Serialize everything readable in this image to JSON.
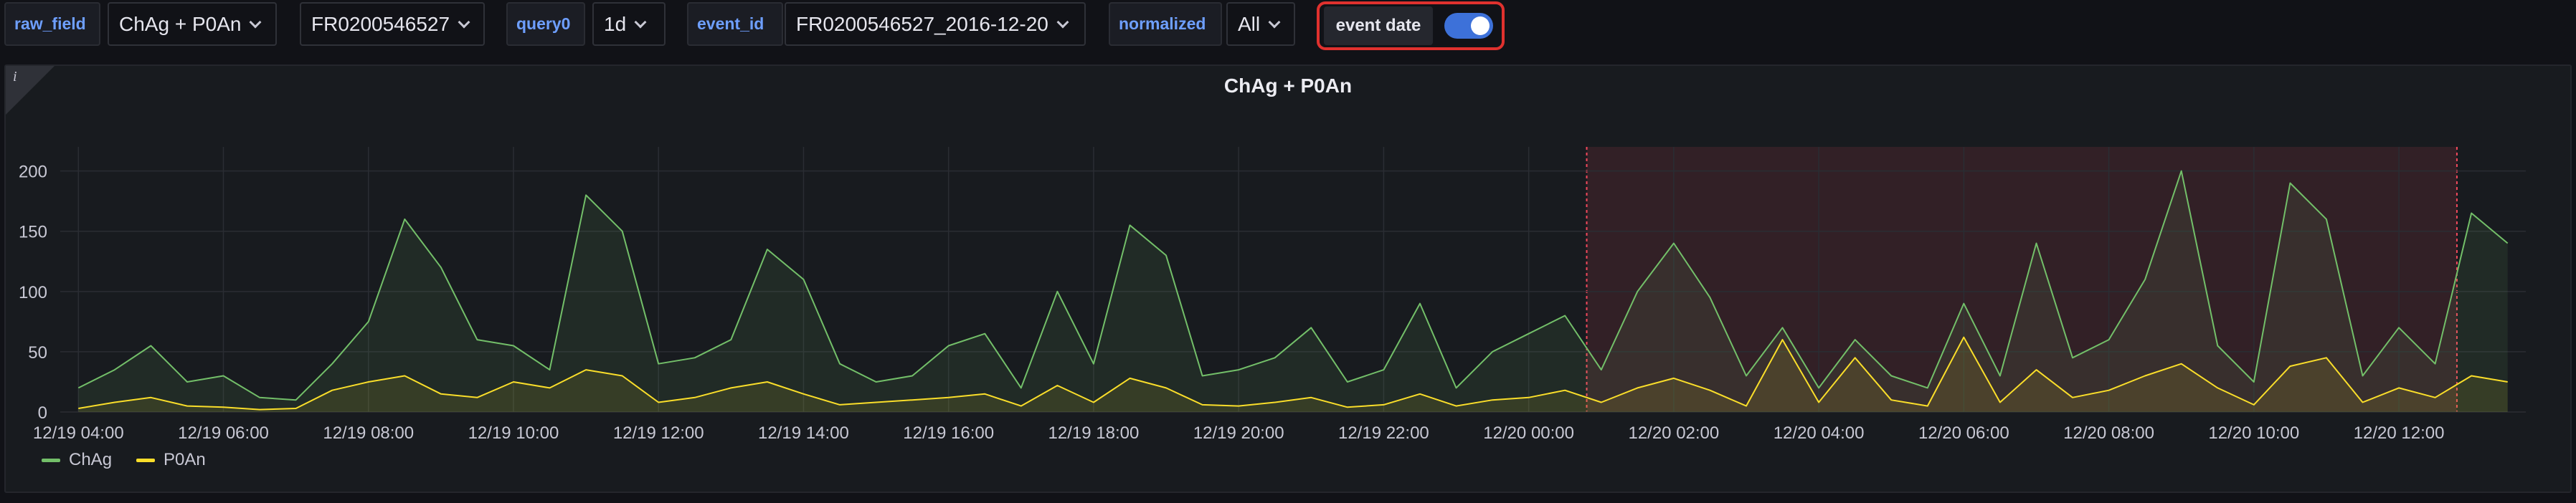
{
  "toolbar": {
    "raw_field_label": "raw_field",
    "raw_field_value": "ChAg + P0An",
    "station_value": "FR0200546527",
    "query0_label": "query0",
    "query0_value": "1d",
    "event_id_label": "event_id",
    "event_id_value": "FR0200546527_2016-12-20",
    "normalized_label": "normalized",
    "normalized_value": "All",
    "event_date_label": "event date",
    "event_date_on": true
  },
  "panel": {
    "info_icon": "i"
  },
  "colors": {
    "ChAg": "#73bf69",
    "P0An": "#fade2a",
    "event_region": "#f2495c",
    "toggle": "#3d71d9",
    "highlight": "#e0312e"
  },
  "chart_data": {
    "type": "line",
    "title": "ChAg + P0An",
    "xlabel": "",
    "ylabel": "",
    "ylim": [
      0,
      220
    ],
    "yticks": [
      0,
      50,
      100,
      150,
      200
    ],
    "xlim": [
      "12/19 03:45",
      "12/20 13:45"
    ],
    "xticks": [
      "12/19 04:00",
      "12/19 06:00",
      "12/19 08:00",
      "12/19 10:00",
      "12/19 12:00",
      "12/19 14:00",
      "12/19 16:00",
      "12/19 18:00",
      "12/19 20:00",
      "12/19 22:00",
      "12/20 00:00",
      "12/20 02:00",
      "12/20 04:00",
      "12/20 06:00",
      "12/20 08:00",
      "12/20 10:00",
      "12/20 12:00"
    ],
    "grid": true,
    "legend": "bottom-left",
    "event_region": {
      "start": "12/20 00:48",
      "end": "12/20 12:48"
    },
    "x": [
      "12/19 04:00",
      "12/19 04:30",
      "12/19 05:00",
      "12/19 05:30",
      "12/19 06:00",
      "12/19 06:30",
      "12/19 07:00",
      "12/19 07:30",
      "12/19 08:00",
      "12/19 08:30",
      "12/19 09:00",
      "12/19 09:30",
      "12/19 10:00",
      "12/19 10:30",
      "12/19 11:00",
      "12/19 11:30",
      "12/19 12:00",
      "12/19 12:30",
      "12/19 13:00",
      "12/19 13:30",
      "12/19 14:00",
      "12/19 14:30",
      "12/19 15:00",
      "12/19 15:30",
      "12/19 16:00",
      "12/19 16:30",
      "12/19 17:00",
      "12/19 17:30",
      "12/19 18:00",
      "12/19 18:30",
      "12/19 19:00",
      "12/19 19:30",
      "12/19 20:00",
      "12/19 20:30",
      "12/19 21:00",
      "12/19 21:30",
      "12/19 22:00",
      "12/19 22:30",
      "12/19 23:00",
      "12/19 23:30",
      "12/20 00:00",
      "12/20 00:30",
      "12/20 01:00",
      "12/20 01:30",
      "12/20 02:00",
      "12/20 02:30",
      "12/20 03:00",
      "12/20 03:30",
      "12/20 04:00",
      "12/20 04:30",
      "12/20 05:00",
      "12/20 05:30",
      "12/20 06:00",
      "12/20 06:30",
      "12/20 07:00",
      "12/20 07:30",
      "12/20 08:00",
      "12/20 08:30",
      "12/20 09:00",
      "12/20 09:30",
      "12/20 10:00",
      "12/20 10:30",
      "12/20 11:00",
      "12/20 11:30",
      "12/20 12:00",
      "12/20 12:30",
      "12/20 13:00",
      "12/20 13:30"
    ],
    "series": [
      {
        "name": "ChAg",
        "values": [
          20,
          35,
          55,
          25,
          30,
          12,
          10,
          40,
          75,
          160,
          120,
          60,
          55,
          35,
          180,
          150,
          40,
          45,
          60,
          135,
          110,
          40,
          25,
          30,
          55,
          65,
          20,
          100,
          40,
          155,
          130,
          30,
          35,
          45,
          70,
          25,
          35,
          90,
          20,
          50,
          65,
          80,
          35,
          100,
          140,
          95,
          30,
          70,
          20,
          60,
          30,
          20,
          90,
          30,
          140,
          45,
          60,
          110,
          200,
          55,
          25,
          190,
          160,
          30,
          70,
          40,
          165,
          140
        ]
      },
      {
        "name": "P0An",
        "values": [
          3,
          8,
          12,
          5,
          4,
          2,
          3,
          18,
          25,
          30,
          15,
          12,
          25,
          20,
          35,
          30,
          8,
          12,
          20,
          25,
          15,
          6,
          8,
          10,
          12,
          15,
          5,
          22,
          8,
          28,
          20,
          6,
          5,
          8,
          12,
          4,
          6,
          15,
          5,
          10,
          12,
          18,
          8,
          20,
          28,
          18,
          5,
          60,
          8,
          45,
          10,
          5,
          62,
          8,
          35,
          12,
          18,
          30,
          40,
          20,
          6,
          38,
          45,
          8,
          20,
          12,
          30,
          25
        ]
      }
    ]
  }
}
